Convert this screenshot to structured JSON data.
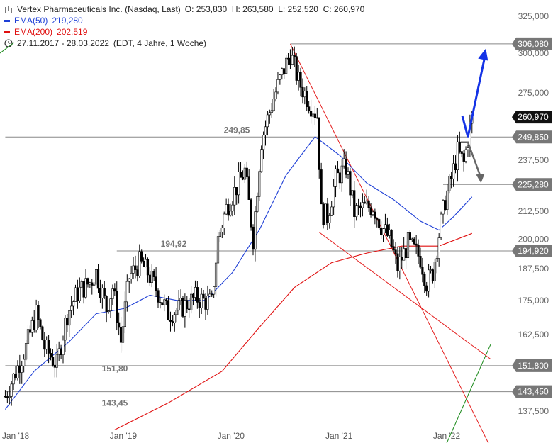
{
  "header": {
    "instrument": "Vertex Pharmaceuticals Inc. (Nasdaq, Last)",
    "ohlc": "O: 253,830  H: 263,580  L: 252,520  C: 260,970",
    "ema50_label": "EMA(50)",
    "ema50_value": "219,280",
    "ema200_label": "EMA(200)",
    "ema200_value": "202,519",
    "range": "27.11.2017 - 28.03.2022",
    "range_detail": "(EDT, 4 Jahre, 1 Woche)"
  },
  "colors": {
    "ema50": "#1e3fd6",
    "ema200": "#e01010",
    "trendline": "#e41e1e",
    "support_trendline": "#1a8a1a",
    "arrow_up": "#1433e6",
    "arrow_down": "#666666",
    "candle": "#000000",
    "hline": "#888888"
  },
  "chart_data": {
    "type": "candlestick",
    "title": "Vertex Pharmaceuticals Inc. (Nasdaq, Last)",
    "period": "weekly",
    "x_range": [
      "2017-11-27",
      "2022-03-28"
    ],
    "ylim": [
      132,
      330
    ],
    "scale": "log",
    "y_ticks": [
      {
        "value": 137.5,
        "label": "137,500"
      },
      {
        "value": 162.5,
        "label": "162,500"
      },
      {
        "value": 175.0,
        "label": "175,000"
      },
      {
        "value": 187.5,
        "label": "187,500"
      },
      {
        "value": 200.0,
        "label": "200,000"
      },
      {
        "value": 212.5,
        "label": "212,500"
      },
      {
        "value": 237.5,
        "label": "237,500"
      },
      {
        "value": 275.0,
        "label": "275,000"
      },
      {
        "value": 300.0,
        "label": "300,000"
      },
      {
        "value": 325.0,
        "label": "325,000"
      }
    ],
    "x_ticks": [
      {
        "date": "2018-01-01",
        "label": "Jan '18"
      },
      {
        "date": "2019-01-01",
        "label": "Jan '19"
      },
      {
        "date": "2020-01-01",
        "label": "Jan '20"
      },
      {
        "date": "2021-01-01",
        "label": "Jan '21"
      },
      {
        "date": "2022-01-01",
        "label": "Jan '22"
      }
    ],
    "last_close": {
      "value": 260.97,
      "label": "260,970"
    },
    "horizontal_levels": [
      {
        "value": 306.08,
        "label": "306,080",
        "start": "2020-07-20"
      },
      {
        "value": 249.85,
        "label": "249,850",
        "chart_label": "249,85",
        "start": "2017-11-27"
      },
      {
        "value": 225.28,
        "label": "225,280",
        "start": "2021-12-20"
      },
      {
        "value": 194.92,
        "label": "194,920",
        "chart_label": "194,92",
        "start": "2018-12-10"
      },
      {
        "value": 151.8,
        "label": "151,800",
        "chart_label": "151,80",
        "start": "2017-11-27"
      },
      {
        "value": 143.45,
        "label": "143,450",
        "chart_label": "143,45",
        "start": "2017-11-27"
      }
    ],
    "anchors": [
      {
        "date": "2017-11-27",
        "value": 142
      },
      {
        "date": "2017-12-25",
        "value": 148
      },
      {
        "date": "2018-02-05",
        "value": 158
      },
      {
        "date": "2018-03-12",
        "value": 170
      },
      {
        "date": "2018-04-09",
        "value": 158
      },
      {
        "date": "2018-05-21",
        "value": 152
      },
      {
        "date": "2018-06-25",
        "value": 170
      },
      {
        "date": "2018-07-30",
        "value": 178
      },
      {
        "date": "2018-09-10",
        "value": 182
      },
      {
        "date": "2018-10-01",
        "value": 186
      },
      {
        "date": "2018-11-05",
        "value": 172
      },
      {
        "date": "2018-11-26",
        "value": 180
      },
      {
        "date": "2018-12-24",
        "value": 160
      },
      {
        "date": "2019-01-21",
        "value": 184
      },
      {
        "date": "2019-02-25",
        "value": 190
      },
      {
        "date": "2019-03-25",
        "value": 186
      },
      {
        "date": "2019-04-29",
        "value": 178
      },
      {
        "date": "2019-06-03",
        "value": 170
      },
      {
        "date": "2019-07-15",
        "value": 172
      },
      {
        "date": "2019-09-02",
        "value": 176
      },
      {
        "date": "2019-10-28",
        "value": 174
      },
      {
        "date": "2019-11-18",
        "value": 200
      },
      {
        "date": "2019-12-16",
        "value": 214
      },
      {
        "date": "2020-01-13",
        "value": 222
      },
      {
        "date": "2020-02-17",
        "value": 232
      },
      {
        "date": "2020-03-16",
        "value": 200
      },
      {
        "date": "2020-04-13",
        "value": 248
      },
      {
        "date": "2020-05-25",
        "value": 272
      },
      {
        "date": "2020-06-29",
        "value": 290
      },
      {
        "date": "2020-07-20",
        "value": 300
      },
      {
        "date": "2020-08-17",
        "value": 282
      },
      {
        "date": "2020-09-21",
        "value": 270
      },
      {
        "date": "2020-10-19",
        "value": 262
      },
      {
        "date": "2020-11-02",
        "value": 212
      },
      {
        "date": "2020-11-23",
        "value": 210
      },
      {
        "date": "2020-12-21",
        "value": 228
      },
      {
        "date": "2021-01-25",
        "value": 234
      },
      {
        "date": "2021-02-22",
        "value": 212
      },
      {
        "date": "2021-03-22",
        "value": 214
      },
      {
        "date": "2021-04-26",
        "value": 215
      },
      {
        "date": "2021-05-24",
        "value": 206
      },
      {
        "date": "2021-06-21",
        "value": 200
      },
      {
        "date": "2021-07-19",
        "value": 188
      },
      {
        "date": "2021-08-23",
        "value": 198
      },
      {
        "date": "2021-10-04",
        "value": 192
      },
      {
        "date": "2021-10-25",
        "value": 182
      },
      {
        "date": "2021-11-15",
        "value": 186
      },
      {
        "date": "2021-12-06",
        "value": 202
      },
      {
        "date": "2021-12-27",
        "value": 218
      },
      {
        "date": "2022-01-17",
        "value": 228
      },
      {
        "date": "2022-02-07",
        "value": 242
      },
      {
        "date": "2022-02-28",
        "value": 236
      },
      {
        "date": "2022-03-28",
        "value": 260.97
      }
    ],
    "ema50": [
      {
        "date": "2017-11-27",
        "value": 138
      },
      {
        "date": "2018-03-05",
        "value": 150
      },
      {
        "date": "2018-07-02",
        "value": 160
      },
      {
        "date": "2018-10-01",
        "value": 170
      },
      {
        "date": "2019-01-07",
        "value": 172
      },
      {
        "date": "2019-04-01",
        "value": 177
      },
      {
        "date": "2019-07-01",
        "value": 175
      },
      {
        "date": "2019-10-07",
        "value": 175
      },
      {
        "date": "2020-01-06",
        "value": 186
      },
      {
        "date": "2020-04-06",
        "value": 204
      },
      {
        "date": "2020-07-06",
        "value": 230
      },
      {
        "date": "2020-10-12",
        "value": 250
      },
      {
        "date": "2021-01-04",
        "value": 240
      },
      {
        "date": "2021-04-05",
        "value": 226
      },
      {
        "date": "2021-07-05",
        "value": 218
      },
      {
        "date": "2021-10-04",
        "value": 208
      },
      {
        "date": "2021-12-06",
        "value": 204
      },
      {
        "date": "2022-01-24",
        "value": 210
      },
      {
        "date": "2022-03-28",
        "value": 219.28
      }
    ],
    "ema200": [
      {
        "date": "2018-12-03",
        "value": 132
      },
      {
        "date": "2019-06-03",
        "value": 140
      },
      {
        "date": "2019-12-02",
        "value": 150
      },
      {
        "date": "2020-04-06",
        "value": 165
      },
      {
        "date": "2020-08-03",
        "value": 180
      },
      {
        "date": "2020-12-07",
        "value": 190
      },
      {
        "date": "2021-04-05",
        "value": 194
      },
      {
        "date": "2021-08-02",
        "value": 197
      },
      {
        "date": "2021-12-06",
        "value": 197
      },
      {
        "date": "2022-03-28",
        "value": 202.519
      }
    ],
    "trendlines": [
      {
        "kind": "resistance",
        "from": {
          "date": "2020-07-20",
          "value": 306
        },
        "to": {
          "date": "2022-05-30",
          "value": 127
        }
      },
      {
        "kind": "lower-channel",
        "from": {
          "date": "2020-10-26",
          "value": 203
        },
        "to": {
          "date": "2022-05-30",
          "value": 154
        }
      },
      {
        "kind": "support",
        "from": {
          "date": "2021-12-20",
          "value": 126
        },
        "to": {
          "date": "2022-05-30",
          "value": 159
        }
      }
    ],
    "projections": [
      {
        "direction": "up",
        "from": {
          "date": "2022-03-14",
          "value": 249.85
        },
        "to": {
          "date": "2022-05-09",
          "value": 302
        }
      },
      {
        "direction": "down",
        "from": {
          "date": "2022-03-14",
          "value": 247
        },
        "to": {
          "date": "2022-04-25",
          "value": 226
        }
      }
    ]
  }
}
